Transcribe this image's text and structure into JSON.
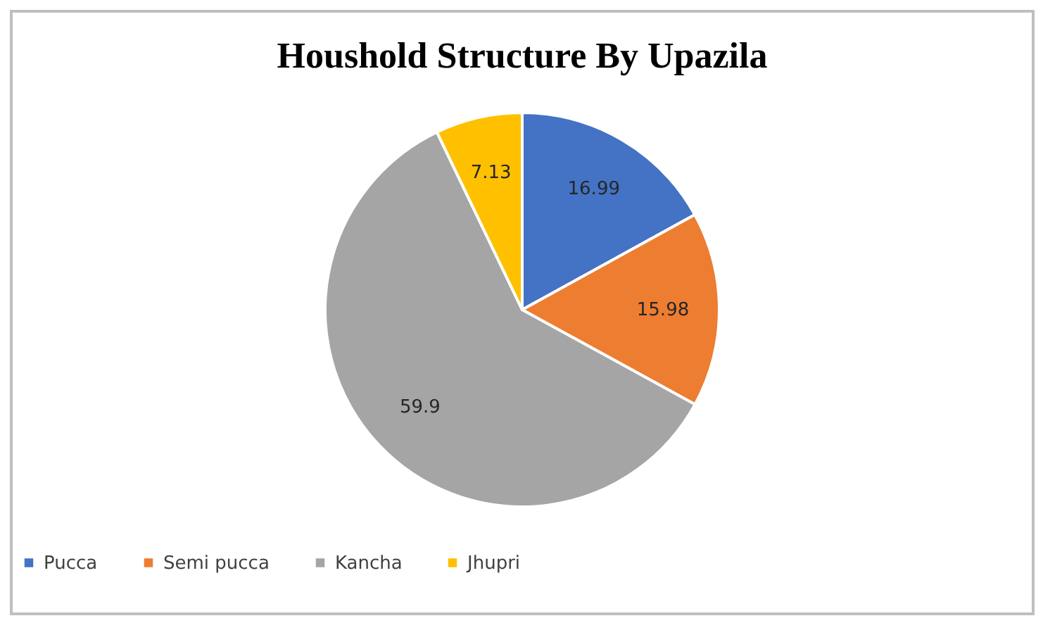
{
  "chart_data": {
    "type": "pie",
    "title": "Houshold Structure By Upazila",
    "categories": [
      "Pucca",
      "Semi pucca",
      "Kancha",
      "Jhupri"
    ],
    "values": [
      16.99,
      15.98,
      59.9,
      7.13
    ],
    "colors": [
      "#4472c4",
      "#ed7d31",
      "#a5a5a5",
      "#ffc000"
    ],
    "data_labels": true,
    "legend": "bottom"
  }
}
